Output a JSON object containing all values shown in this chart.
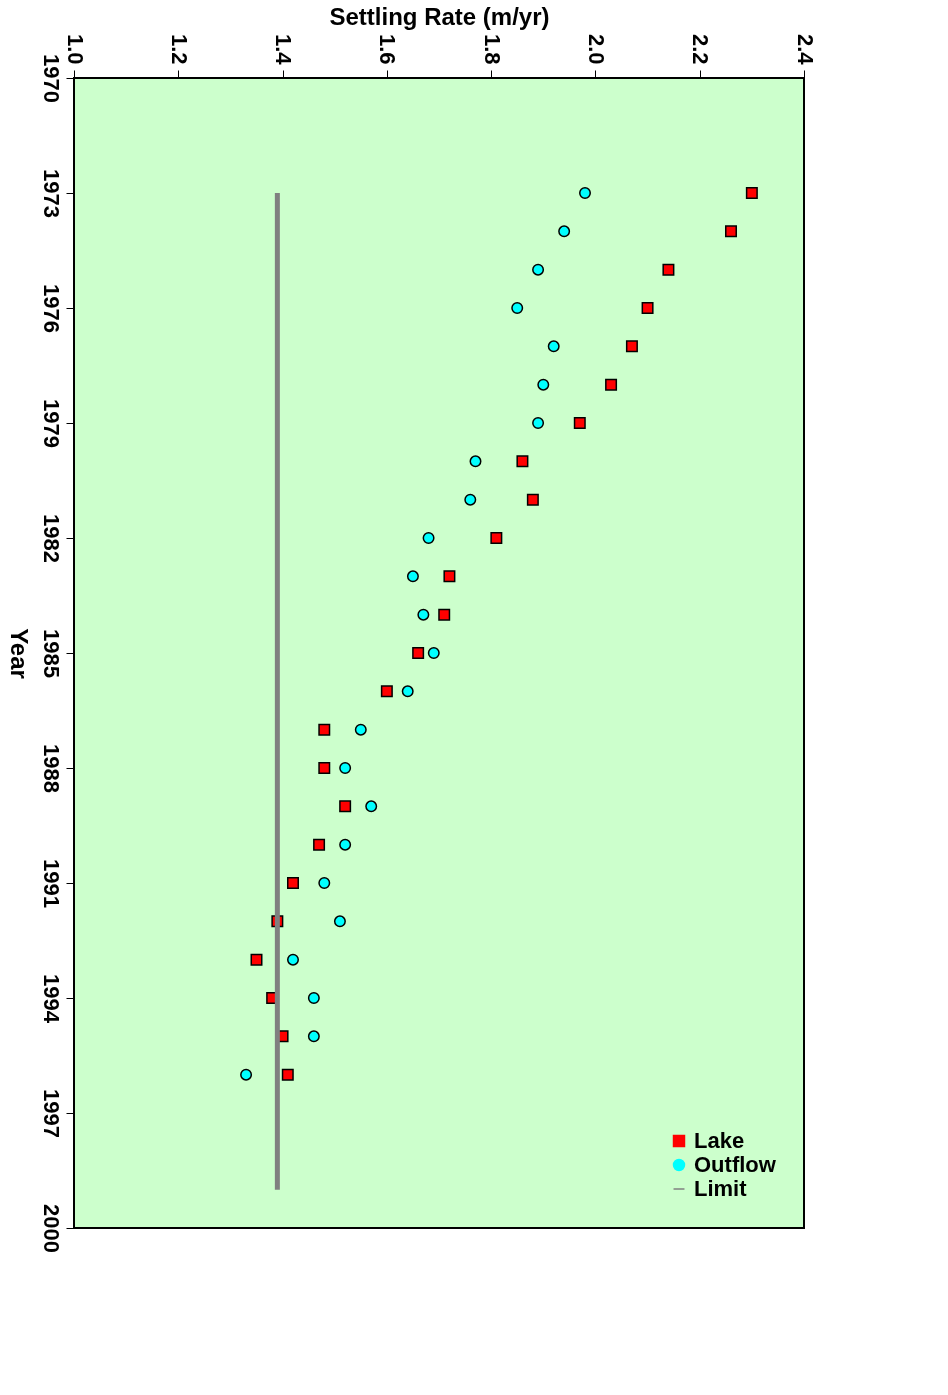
{
  "chart_data": {
    "type": "scatter",
    "xlabel": "Settling Rate (m/yr)",
    "ylabel": "Year",
    "series": [
      {
        "name": "Lake",
        "marker": "square",
        "color": "#ff0000",
        "x": [
          2.3,
          2.26,
          2.14,
          2.1,
          2.07,
          2.03,
          1.97,
          1.86,
          1.88,
          1.81,
          1.72,
          1.71,
          1.66,
          1.6,
          1.48,
          1.48,
          1.52,
          1.47,
          1.42,
          1.39,
          1.35,
          1.38,
          1.4,
          1.41
        ],
        "values": [
          1973,
          1974,
          1975,
          1976,
          1977,
          1978,
          1979,
          1980,
          1981,
          1982,
          1983,
          1984,
          1985,
          1986,
          1987,
          1988,
          1989,
          1990,
          1991,
          1992,
          1993,
          1994,
          1995,
          1996
        ]
      },
      {
        "name": "Outflow",
        "marker": "circle",
        "color": "#00ffff",
        "x": [
          1.98,
          1.94,
          1.89,
          1.85,
          1.92,
          1.9,
          1.89,
          1.77,
          1.76,
          1.68,
          1.65,
          1.67,
          1.69,
          1.64,
          1.55,
          1.52,
          1.57,
          1.52,
          1.48,
          1.51,
          1.42,
          1.46,
          1.46,
          1.33
        ],
        "values": [
          1973,
          1974,
          1975,
          1976,
          1977,
          1978,
          1979,
          1980,
          1981,
          1982,
          1983,
          1984,
          1985,
          1986,
          1987,
          1988,
          1989,
          1990,
          1991,
          1992,
          1993,
          1994,
          1995,
          1996
        ]
      },
      {
        "name": "Limit",
        "type": "line",
        "line_style": "solid",
        "color": "#808080",
        "x": [
          1.39,
          1.39
        ],
        "values": [
          1973,
          1999
        ]
      }
    ],
    "ylim": [
      2000,
      1970
    ],
    "yticks": [
      1970,
      1973,
      1976,
      1979,
      1982,
      1985,
      1988,
      1991,
      1994,
      1997,
      2000
    ],
    "xlim": [
      1.0,
      2.4
    ],
    "xticks": [
      {
        "value": 1.0,
        "label": "1.0"
      },
      {
        "value": 1.2,
        "label": "1.2"
      },
      {
        "value": 1.4,
        "label": "1.4"
      },
      {
        "value": 1.6,
        "label": "1.6"
      },
      {
        "value": 1.8,
        "label": "1.8"
      },
      {
        "value": 2.0,
        "label": "2.0"
      },
      {
        "value": 2.2,
        "label": "2.2"
      },
      {
        "value": 2.4,
        "label": "2.4"
      }
    ],
    "grid": false,
    "legend": "bottom right"
  }
}
